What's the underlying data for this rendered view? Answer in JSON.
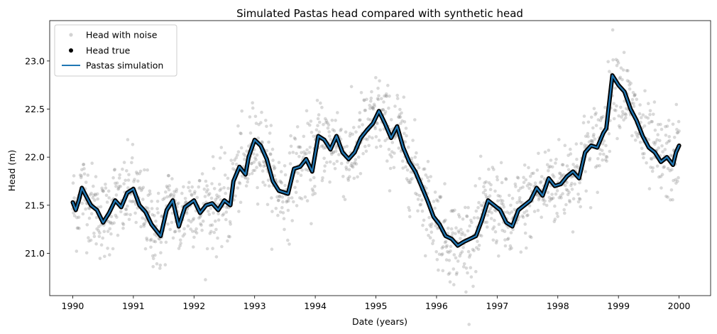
{
  "chart_data": {
    "type": "line",
    "title": "Simulated Pastas head compared with synthetic head",
    "xlabel": "Date (years)",
    "ylabel": "Head (m)",
    "xlim": [
      1989.62,
      2000.52
    ],
    "ylim": [
      20.56,
      23.42
    ],
    "xticks": [
      1990,
      1991,
      1992,
      1993,
      1994,
      1995,
      1996,
      1997,
      1998,
      1999,
      2000
    ],
    "xtick_labels": [
      "1990",
      "1991",
      "1992",
      "1993",
      "1994",
      "1995",
      "1996",
      "1997",
      "1998",
      "1999",
      "2000"
    ],
    "yticks": [
      21.0,
      21.5,
      22.0,
      22.5,
      23.0
    ],
    "ytick_labels": [
      "21.0",
      "21.5",
      "22.0",
      "22.5",
      "23.0"
    ],
    "grid": false,
    "legend_placement": "top-left",
    "legend": [
      "Head with noise",
      "Head true",
      "Pastas simulation"
    ],
    "colors": {
      "noise": "#808080",
      "true": "#000000",
      "sim": "#1f77b4"
    },
    "noise_spread": 0.22,
    "series": [
      {
        "name": "Pastas simulation",
        "x": [
          1990.0,
          1990.05,
          1990.1,
          1990.15,
          1990.2,
          1990.3,
          1990.4,
          1990.5,
          1990.6,
          1990.7,
          1990.8,
          1990.9,
          1991.0,
          1991.1,
          1991.2,
          1991.3,
          1991.45,
          1991.55,
          1991.65,
          1991.75,
          1991.85,
          1992.0,
          1992.1,
          1992.2,
          1992.3,
          1992.4,
          1992.5,
          1992.6,
          1992.65,
          1992.75,
          1992.85,
          1992.9,
          1993.0,
          1993.1,
          1993.2,
          1993.3,
          1993.4,
          1993.55,
          1993.65,
          1993.75,
          1993.85,
          1993.95,
          1994.05,
          1994.15,
          1994.25,
          1994.35,
          1994.45,
          1994.55,
          1994.65,
          1994.75,
          1994.85,
          1994.95,
          1995.05,
          1995.15,
          1995.25,
          1995.35,
          1995.45,
          1995.55,
          1995.65,
          1995.75,
          1995.85,
          1995.95,
          1996.05,
          1996.15,
          1996.25,
          1996.35,
          1996.45,
          1996.55,
          1996.65,
          1996.75,
          1996.85,
          1996.95,
          1997.05,
          1997.15,
          1997.25,
          1997.35,
          1997.45,
          1997.55,
          1997.65,
          1997.75,
          1997.85,
          1997.95,
          1998.05,
          1998.15,
          1998.25,
          1998.35,
          1998.45,
          1998.55,
          1998.65,
          1998.75,
          1998.8,
          1998.9,
          1999.0,
          1999.1,
          1999.2,
          1999.3,
          1999.4,
          1999.5,
          1999.6,
          1999.7,
          1999.8,
          1999.9,
          1999.95,
          2000.0
        ],
        "y": [
          21.53,
          21.45,
          21.55,
          21.68,
          21.62,
          21.5,
          21.45,
          21.32,
          21.42,
          21.55,
          21.48,
          21.63,
          21.67,
          21.5,
          21.43,
          21.3,
          21.18,
          21.45,
          21.55,
          21.28,
          21.48,
          21.55,
          21.42,
          21.5,
          21.52,
          21.45,
          21.55,
          21.5,
          21.75,
          21.9,
          21.82,
          22.0,
          22.18,
          22.12,
          21.98,
          21.75,
          21.65,
          21.62,
          21.88,
          21.9,
          21.98,
          21.85,
          22.22,
          22.18,
          22.08,
          22.22,
          22.05,
          21.98,
          22.05,
          22.2,
          22.28,
          22.35,
          22.48,
          22.35,
          22.2,
          22.32,
          22.1,
          21.95,
          21.85,
          21.7,
          21.55,
          21.38,
          21.3,
          21.18,
          21.15,
          21.08,
          21.12,
          21.15,
          21.18,
          21.35,
          21.55,
          21.5,
          21.45,
          21.32,
          21.28,
          21.45,
          21.5,
          21.55,
          21.68,
          21.6,
          21.78,
          21.7,
          21.72,
          21.8,
          21.85,
          21.78,
          22.05,
          22.12,
          22.1,
          22.25,
          22.3,
          22.85,
          22.75,
          22.68,
          22.5,
          22.38,
          22.22,
          22.1,
          22.05,
          21.95,
          22.0,
          21.92,
          22.05,
          22.12
        ]
      }
    ]
  }
}
